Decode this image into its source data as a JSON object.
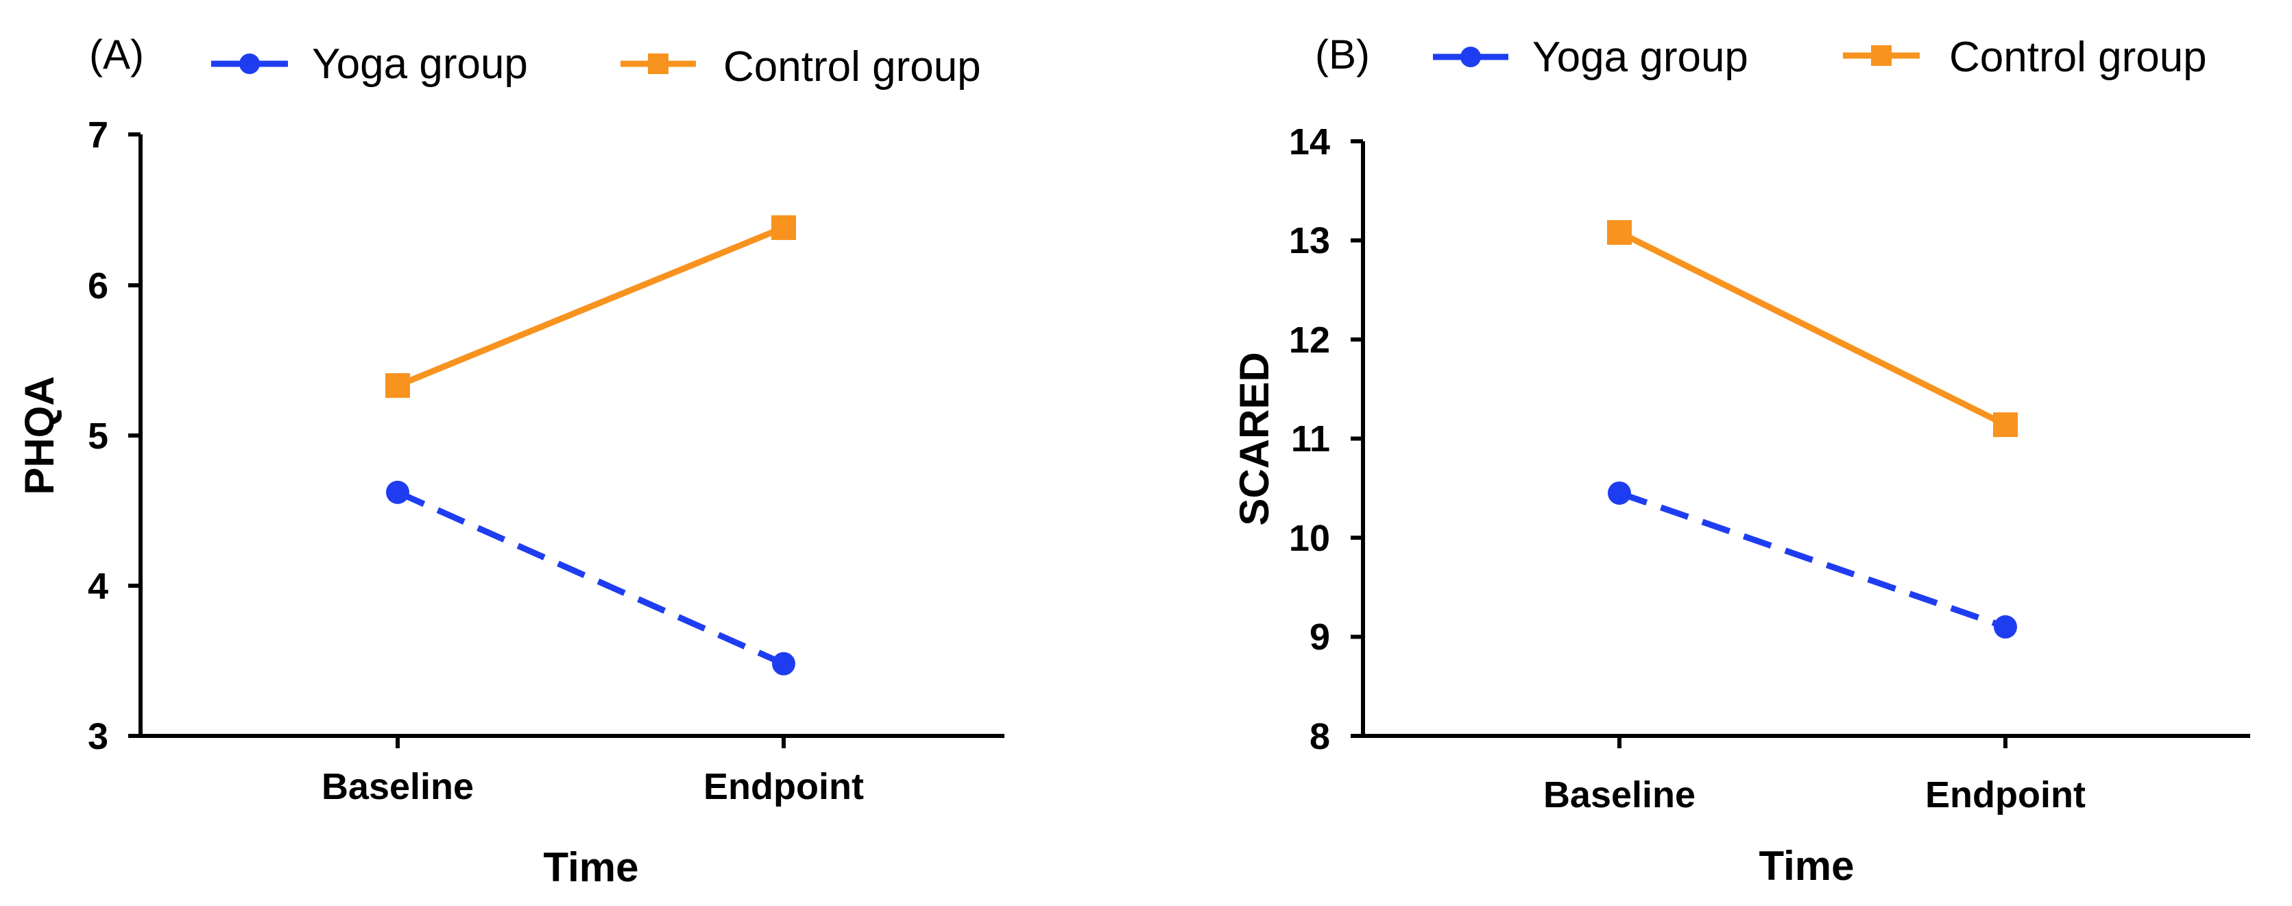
{
  "colors": {
    "yoga": "#1f3df0",
    "control": "#f7931e",
    "axis": "#000000"
  },
  "chart_data": [
    {
      "type": "line",
      "panel_label": "(A)",
      "title": "",
      "xlabel": "Time",
      "ylabel": "PHQA",
      "categories": [
        "Baseline",
        "Endpoint"
      ],
      "ylim": [
        3,
        7
      ],
      "yticks": [
        "3",
        "4",
        "5",
        "6",
        "7"
      ],
      "legend": [
        "Yoga group",
        "Control group"
      ],
      "legend_position": "top",
      "series": [
        {
          "name": "Yoga group",
          "values": [
            4.62,
            3.48
          ],
          "style": "dashed",
          "marker": "circle"
        },
        {
          "name": "Control group",
          "values": [
            5.33,
            6.38
          ],
          "style": "solid",
          "marker": "square"
        }
      ]
    },
    {
      "type": "line",
      "panel_label": "(B)",
      "title": "",
      "xlabel": "Time",
      "ylabel": "SCARED",
      "categories": [
        "Baseline",
        "Endpoint"
      ],
      "ylim": [
        8,
        14
      ],
      "yticks": [
        "8",
        "9",
        "10",
        "11",
        "12",
        "13",
        "14"
      ],
      "legend": [
        "Yoga group",
        "Control group"
      ],
      "legend_position": "top",
      "series": [
        {
          "name": "Yoga group",
          "values": [
            10.45,
            9.1
          ],
          "style": "dashed",
          "marker": "circle"
        },
        {
          "name": "Control group",
          "values": [
            13.08,
            11.14
          ],
          "style": "solid",
          "marker": "square"
        }
      ]
    }
  ]
}
